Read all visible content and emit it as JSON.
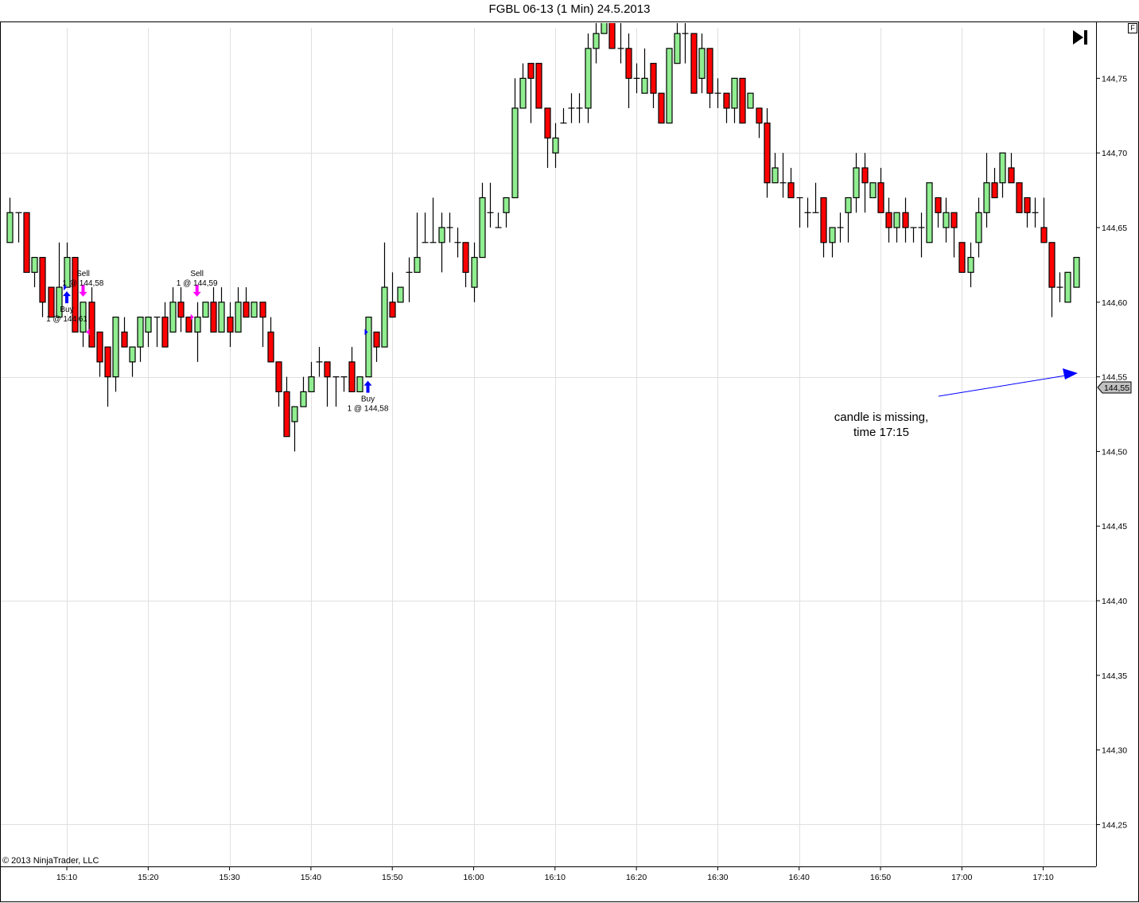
{
  "title": "FGBL 06-13 (1 Min)  24.5.2013",
  "copyright": "© 2013 NinjaTrader, LLC",
  "f_button": "F",
  "annotation": {
    "line1": "candle is missing,",
    "line2": "time 17:15",
    "color": "#0000FF"
  },
  "last_price_label": "144,55",
  "colors": {
    "up": "#90EE90",
    "down": "#FF0000",
    "outline": "#000000",
    "grid": "#E0E0E0",
    "buy": "#0000FF",
    "sell": "#FF00FF",
    "price_tag": "#C0C0C0"
  },
  "chart_data": {
    "type": "candlestick",
    "title": "FGBL 06-13 (1 Min)  24.5.2013",
    "ylim": [
      144.222,
      144.787
    ],
    "y_ticks": [
      "144,75",
      "144,70",
      "144,65",
      "144,60",
      "144,55",
      "144,50",
      "144,45",
      "144,40",
      "144,35",
      "144,30",
      "144,25"
    ],
    "y_gridlines": [
      "144,70",
      "144,55",
      "144,40",
      "144,25"
    ],
    "x_ticks": [
      "15:10",
      "15:20",
      "15:30",
      "15:40",
      "15:50",
      "16:00",
      "16:10",
      "16:20",
      "16:30",
      "16:40",
      "16:50",
      "17:00",
      "17:10"
    ],
    "grid": true,
    "columns": [
      "time",
      "open",
      "high",
      "low",
      "close"
    ],
    "candles": [
      [
        "15:03",
        144.64,
        144.67,
        144.64,
        144.66
      ],
      [
        "15:04",
        144.66,
        144.66,
        144.64,
        144.66
      ],
      [
        "15:05",
        144.66,
        144.66,
        144.62,
        144.62
      ],
      [
        "15:06",
        144.62,
        144.63,
        144.61,
        144.63
      ],
      [
        "15:07",
        144.63,
        144.63,
        144.59,
        144.6
      ],
      [
        "15:08",
        144.61,
        144.61,
        144.59,
        144.59
      ],
      [
        "15:09",
        144.59,
        144.64,
        144.59,
        144.61
      ],
      [
        "15:10",
        144.61,
        144.64,
        144.61,
        144.63
      ],
      [
        "15:11",
        144.63,
        144.63,
        144.58,
        144.58
      ],
      [
        "15:12",
        144.58,
        144.6,
        144.57,
        144.6
      ],
      [
        "15:13",
        144.6,
        144.61,
        144.57,
        144.57
      ],
      [
        "15:14",
        144.58,
        144.58,
        144.55,
        144.56
      ],
      [
        "15:15",
        144.57,
        144.57,
        144.53,
        144.55
      ],
      [
        "15:16",
        144.55,
        144.59,
        144.54,
        144.59
      ],
      [
        "15:17",
        144.58,
        144.59,
        144.57,
        144.57
      ],
      [
        "15:18",
        144.56,
        144.57,
        144.55,
        144.57
      ],
      [
        "15:19",
        144.57,
        144.59,
        144.56,
        144.59
      ],
      [
        "15:20",
        144.58,
        144.59,
        144.57,
        144.59
      ],
      [
        "15:21",
        144.59,
        144.59,
        144.57,
        144.59
      ],
      [
        "15:22",
        144.59,
        144.6,
        144.57,
        144.57
      ],
      [
        "15:23",
        144.58,
        144.61,
        144.58,
        144.6
      ],
      [
        "15:24",
        144.6,
        144.61,
        144.58,
        144.59
      ],
      [
        "15:25",
        144.59,
        144.59,
        144.58,
        144.58
      ],
      [
        "15:26",
        144.58,
        144.6,
        144.56,
        144.59
      ],
      [
        "15:27",
        144.59,
        144.6,
        144.59,
        144.6
      ],
      [
        "15:28",
        144.6,
        144.61,
        144.58,
        144.58
      ],
      [
        "15:29",
        144.58,
        144.61,
        144.58,
        144.6
      ],
      [
        "15:30",
        144.59,
        144.6,
        144.57,
        144.58
      ],
      [
        "15:31",
        144.58,
        144.61,
        144.58,
        144.6
      ],
      [
        "15:32",
        144.6,
        144.61,
        144.59,
        144.59
      ],
      [
        "15:33",
        144.59,
        144.6,
        144.59,
        144.6
      ],
      [
        "15:34",
        144.6,
        144.6,
        144.57,
        144.59
      ],
      [
        "15:35",
        144.58,
        144.59,
        144.56,
        144.56
      ],
      [
        "15:36",
        144.56,
        144.56,
        144.53,
        144.54
      ],
      [
        "15:37",
        144.54,
        144.55,
        144.51,
        144.51
      ],
      [
        "15:38",
        144.52,
        144.53,
        144.5,
        144.53
      ],
      [
        "15:39",
        144.53,
        144.55,
        144.53,
        144.54
      ],
      [
        "15:40",
        144.54,
        144.56,
        144.54,
        144.55
      ],
      [
        "15:41",
        144.56,
        144.57,
        144.55,
        144.56
      ],
      [
        "15:42",
        144.56,
        144.56,
        144.53,
        144.55
      ],
      [
        "15:43",
        144.55,
        144.55,
        144.53,
        144.55
      ],
      [
        "15:44",
        144.55,
        144.55,
        144.54,
        144.55
      ],
      [
        "15:45",
        144.56,
        144.57,
        144.54,
        144.54
      ],
      [
        "15:46",
        144.54,
        144.55,
        144.54,
        144.55
      ],
      [
        "15:47",
        144.55,
        144.59,
        144.55,
        144.59
      ],
      [
        "15:48",
        144.58,
        144.58,
        144.56,
        144.57
      ],
      [
        "15:49",
        144.57,
        144.64,
        144.57,
        144.61
      ],
      [
        "15:50",
        144.6,
        144.62,
        144.59,
        144.59
      ],
      [
        "15:51",
        144.6,
        144.61,
        144.6,
        144.61
      ],
      [
        "15:52",
        144.62,
        144.63,
        144.6,
        144.62
      ],
      [
        "15:53",
        144.62,
        144.66,
        144.62,
        144.63
      ],
      [
        "15:54",
        144.64,
        144.66,
        144.64,
        144.64
      ],
      [
        "15:55",
        144.64,
        144.67,
        144.64,
        144.64
      ],
      [
        "15:56",
        144.64,
        144.66,
        144.62,
        144.65
      ],
      [
        "15:57",
        144.65,
        144.66,
        144.64,
        144.65
      ],
      [
        "15:58",
        144.64,
        144.65,
        144.63,
        144.64
      ],
      [
        "15:59",
        144.64,
        144.64,
        144.61,
        144.62
      ],
      [
        "16:00",
        144.61,
        144.64,
        144.6,
        144.63
      ],
      [
        "16:01",
        144.63,
        144.68,
        144.63,
        144.67
      ],
      [
        "16:02",
        144.66,
        144.68,
        144.65,
        144.66
      ],
      [
        "16:03",
        144.65,
        144.66,
        144.65,
        144.65
      ],
      [
        "16:04",
        144.66,
        144.67,
        144.65,
        144.67
      ],
      [
        "16:05",
        144.67,
        144.75,
        144.67,
        144.73
      ],
      [
        "16:06",
        144.73,
        144.76,
        144.73,
        144.75
      ],
      [
        "16:07",
        144.76,
        144.76,
        144.72,
        144.75
      ],
      [
        "16:08",
        144.76,
        144.76,
        144.73,
        144.73
      ],
      [
        "16:09",
        144.73,
        144.73,
        144.69,
        144.71
      ],
      [
        "16:10",
        144.7,
        144.72,
        144.69,
        144.71
      ],
      [
        "16:11",
        144.72,
        144.73,
        144.72,
        144.72
      ],
      [
        "16:12",
        144.73,
        144.74,
        144.72,
        144.73
      ],
      [
        "16:13",
        144.73,
        144.74,
        144.72,
        144.73
      ],
      [
        "16:14",
        144.73,
        144.78,
        144.72,
        144.77
      ],
      [
        "16:15",
        144.77,
        144.79,
        144.76,
        144.78
      ],
      [
        "16:16",
        144.78,
        144.8,
        144.78,
        144.79
      ],
      [
        "16:17",
        144.79,
        144.79,
        144.77,
        144.77
      ],
      [
        "16:18",
        144.77,
        144.79,
        144.76,
        144.77
      ],
      [
        "16:19",
        144.77,
        144.78,
        144.73,
        144.75
      ],
      [
        "16:20",
        144.75,
        144.76,
        144.74,
        144.75
      ],
      [
        "16:21",
        144.74,
        144.77,
        144.74,
        144.75
      ],
      [
        "16:22",
        144.76,
        144.76,
        144.73,
        144.74
      ],
      [
        "16:23",
        144.74,
        144.74,
        144.72,
        144.72
      ],
      [
        "16:24",
        144.72,
        144.77,
        144.72,
        144.77
      ],
      [
        "16:25",
        144.76,
        144.79,
        144.76,
        144.78
      ],
      [
        "16:26",
        144.78,
        144.79,
        144.76,
        144.78
      ],
      [
        "16:27",
        144.78,
        144.78,
        144.74,
        144.74
      ],
      [
        "16:28",
        144.75,
        144.78,
        144.74,
        144.77
      ],
      [
        "16:29",
        144.77,
        144.77,
        144.73,
        144.74
      ],
      [
        "16:30",
        144.74,
        144.75,
        144.73,
        144.74
      ],
      [
        "16:31",
        144.74,
        144.74,
        144.72,
        144.73
      ],
      [
        "16:32",
        144.73,
        144.75,
        144.72,
        144.75
      ],
      [
        "16:33",
        144.75,
        144.75,
        144.72,
        144.72
      ],
      [
        "16:34",
        144.73,
        144.74,
        144.73,
        144.74
      ],
      [
        "16:35",
        144.73,
        144.73,
        144.71,
        144.72
      ],
      [
        "16:36",
        144.72,
        144.73,
        144.67,
        144.68
      ],
      [
        "16:37",
        144.68,
        144.7,
        144.68,
        144.69
      ],
      [
        "16:38",
        144.68,
        144.7,
        144.67,
        144.68
      ],
      [
        "16:39",
        144.68,
        144.69,
        144.67,
        144.67
      ],
      [
        "16:40",
        144.67,
        144.67,
        144.65,
        144.67
      ],
      [
        "16:41",
        144.66,
        144.67,
        144.65,
        144.66
      ],
      [
        "16:42",
        144.66,
        144.68,
        144.66,
        144.66
      ],
      [
        "16:43",
        144.67,
        144.67,
        144.63,
        144.64
      ],
      [
        "16:44",
        144.64,
        144.65,
        144.63,
        144.65
      ],
      [
        "16:45",
        144.65,
        144.66,
        144.64,
        144.65
      ],
      [
        "16:46",
        144.66,
        144.67,
        144.64,
        144.67
      ],
      [
        "16:47",
        144.67,
        144.7,
        144.66,
        144.69
      ],
      [
        "16:48",
        144.69,
        144.7,
        144.66,
        144.68
      ],
      [
        "16:49",
        144.67,
        144.68,
        144.67,
        144.68
      ],
      [
        "16:50",
        144.68,
        144.69,
        144.66,
        144.66
      ],
      [
        "16:51",
        144.66,
        144.67,
        144.64,
        144.65
      ],
      [
        "16:52",
        144.65,
        144.66,
        144.64,
        144.66
      ],
      [
        "16:53",
        144.66,
        144.67,
        144.64,
        144.65
      ],
      [
        "16:54",
        144.65,
        144.65,
        144.64,
        144.65
      ],
      [
        "16:55",
        144.65,
        144.66,
        144.63,
        144.65
      ],
      [
        "16:56",
        144.64,
        144.68,
        144.64,
        144.68
      ],
      [
        "16:57",
        144.67,
        144.67,
        144.65,
        144.66
      ],
      [
        "16:58",
        144.65,
        144.67,
        144.64,
        144.66
      ],
      [
        "16:59",
        144.66,
        144.66,
        144.63,
        144.65
      ],
      [
        "17:00",
        144.64,
        144.64,
        144.62,
        144.62
      ],
      [
        "17:01",
        144.62,
        144.64,
        144.61,
        144.63
      ],
      [
        "17:02",
        144.64,
        144.67,
        144.63,
        144.66
      ],
      [
        "17:03",
        144.66,
        144.7,
        144.65,
        144.68
      ],
      [
        "17:04",
        144.68,
        144.69,
        144.67,
        144.67
      ],
      [
        "17:05",
        144.68,
        144.7,
        144.67,
        144.7
      ],
      [
        "17:06",
        144.69,
        144.7,
        144.68,
        144.68
      ],
      [
        "17:07",
        144.68,
        144.68,
        144.66,
        144.66
      ],
      [
        "17:08",
        144.67,
        144.67,
        144.65,
        144.66
      ],
      [
        "17:09",
        144.66,
        144.67,
        144.65,
        144.66
      ],
      [
        "17:10",
        144.65,
        144.67,
        144.64,
        144.64
      ],
      [
        "17:11",
        144.64,
        144.64,
        144.59,
        144.61
      ],
      [
        "17:12",
        144.61,
        144.62,
        144.6,
        144.61
      ],
      [
        "17:13",
        144.6,
        144.62,
        144.6,
        144.62
      ],
      [
        "17:14",
        144.61,
        144.63,
        144.61,
        144.63
      ]
    ],
    "markers": [
      {
        "side": "buy",
        "time": "15:10",
        "price": 144.61,
        "label": "Buy",
        "detail": "1 @ 144,61"
      },
      {
        "side": "sell",
        "time": "15:12",
        "price": 144.58,
        "label": "Sell",
        "detail": "1 @ 144,58"
      },
      {
        "side": "sell",
        "time": "15:26",
        "price": 144.59,
        "label": "Sell",
        "detail": "1 @ 144,59"
      },
      {
        "side": "buy",
        "time": "15:47",
        "price": 144.58,
        "label": "Buy",
        "detail": "1 @ 144,58"
      }
    ]
  }
}
